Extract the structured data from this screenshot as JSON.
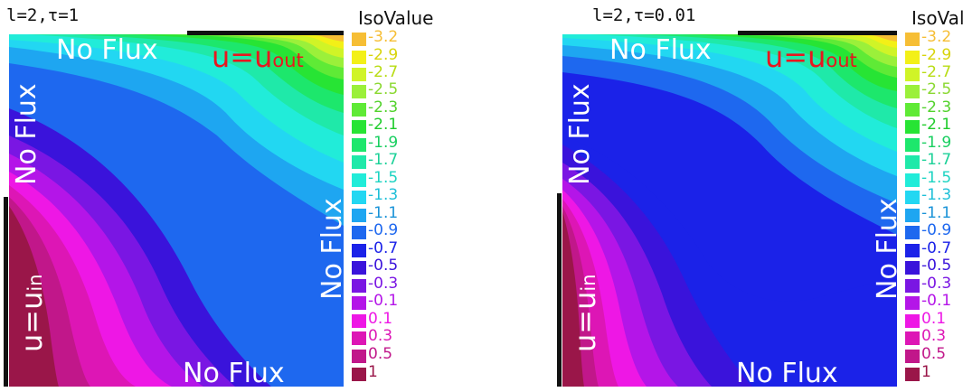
{
  "figure": {
    "isovalue_title": "IsoValue",
    "legend": [
      {
        "label": "-3.2",
        "color": "#f6be35"
      },
      {
        "label": "-2.9",
        "color": "#f3f017"
      },
      {
        "label": "-2.7",
        "color": "#d0f427"
      },
      {
        "label": "-2.5",
        "color": "#9bf03a"
      },
      {
        "label": "-2.3",
        "color": "#5fea36"
      },
      {
        "label": "-2.1",
        "color": "#27e434"
      },
      {
        "label": "-1.9",
        "color": "#1de76c"
      },
      {
        "label": "-1.7",
        "color": "#1fe9a9"
      },
      {
        "label": "-1.5",
        "color": "#21ecd9"
      },
      {
        "label": "-1.3",
        "color": "#22d7f2"
      },
      {
        "label": "-1.1",
        "color": "#1ea6f1"
      },
      {
        "label": "-0.9",
        "color": "#1e68ef"
      },
      {
        "label": "-0.7",
        "color": "#1b22e8"
      },
      {
        "label": "-0.5",
        "color": "#3a13db"
      },
      {
        "label": "-0.3",
        "color": "#7a16e3"
      },
      {
        "label": "-0.1",
        "color": "#b415e8"
      },
      {
        "label": "0.1",
        "color": "#ee17e5"
      },
      {
        "label": "0.3",
        "color": "#dd16b5"
      },
      {
        "label": "0.5",
        "color": "#c1178a"
      },
      {
        "label": "1",
        "color": "#9a1649"
      }
    ]
  },
  "panels": [
    {
      "param": "l=2,τ=1",
      "labels": {
        "top_noflux": "No Flux",
        "left_noflux": "No Flux",
        "right_noflux": "No Flux",
        "bottom_noflux": "No Flux",
        "u_out": "u=u",
        "u_out_sub": "out",
        "u_in": "u=u",
        "u_in_sub": "in"
      }
    },
    {
      "param": "l=2,τ=0.01",
      "labels": {
        "top_noflux": "No Flux",
        "left_noflux": "No Flux",
        "right_noflux": "No Flux",
        "bottom_noflux": "No Flux",
        "u_out": "u=u",
        "u_out_sub": "out",
        "u_in": "u=u",
        "u_in_sub": "in"
      }
    }
  ]
}
